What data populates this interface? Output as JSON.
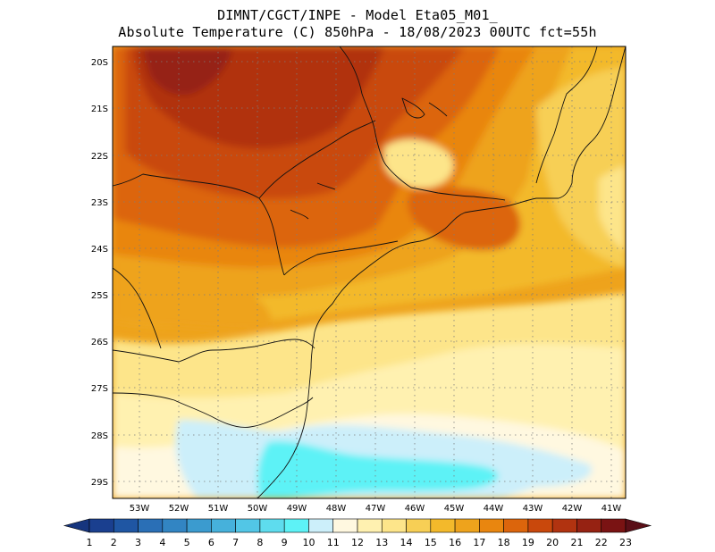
{
  "title_line1": "DIMNT/CGCT/INPE -  Model Eta05_M01_",
  "title_line2": "Absolute Temperature (C) 850hPa -  18/08/2023 00UTC fct=55h",
  "lat_labels": [
    "20S",
    "21S",
    "22S",
    "23S",
    "24S",
    "25S",
    "26S",
    "27S",
    "28S",
    "29S"
  ],
  "lon_labels": [
    "53W",
    "52W",
    "51W",
    "50W",
    "49W",
    "48W",
    "47W",
    "46W",
    "45W",
    "44W",
    "43W",
    "42W",
    "41W"
  ],
  "colorbar": {
    "labels": [
      "1",
      "2",
      "3",
      "4",
      "5",
      "6",
      "7",
      "8",
      "9",
      "10",
      "11",
      "12",
      "13",
      "14",
      "15",
      "16",
      "17",
      "18",
      "19",
      "20",
      "21",
      "22",
      "23"
    ],
    "colors": [
      "#1a3f8f",
      "#1f56a3",
      "#2a6fb6",
      "#3285c3",
      "#3b9bcf",
      "#46b1db",
      "#52c6e6",
      "#5edcee",
      "#5df2f6",
      "#cceffa",
      "#fff8e0",
      "#fff1b0",
      "#fde58a",
      "#f7cf55",
      "#f3b92b",
      "#eea31c",
      "#e9860f",
      "#dc650c",
      "#c9480c",
      "#b13310",
      "#962212",
      "#7a1313"
    ],
    "low_color": "#16357e",
    "high_color": "#5a0f17"
  },
  "map_regions": [
    {
      "name": "deep-red-core",
      "color": "#962212"
    },
    {
      "name": "red-band",
      "color": "#b13310"
    },
    {
      "name": "dark-orange",
      "color": "#c9480c"
    },
    {
      "name": "orange",
      "color": "#dc650c"
    },
    {
      "name": "light-orange",
      "color": "#e9860f"
    },
    {
      "name": "amber",
      "color": "#eea31c"
    },
    {
      "name": "gold",
      "color": "#f3b92b"
    },
    {
      "name": "yellow",
      "color": "#f7cf55"
    },
    {
      "name": "pale-yellow",
      "color": "#fde58a"
    },
    {
      "name": "cream",
      "color": "#fff1b0"
    },
    {
      "name": "off-white",
      "color": "#fff8e0"
    },
    {
      "name": "pale-cyan",
      "color": "#cceffa"
    },
    {
      "name": "cyan",
      "color": "#5df2f6"
    }
  ]
}
